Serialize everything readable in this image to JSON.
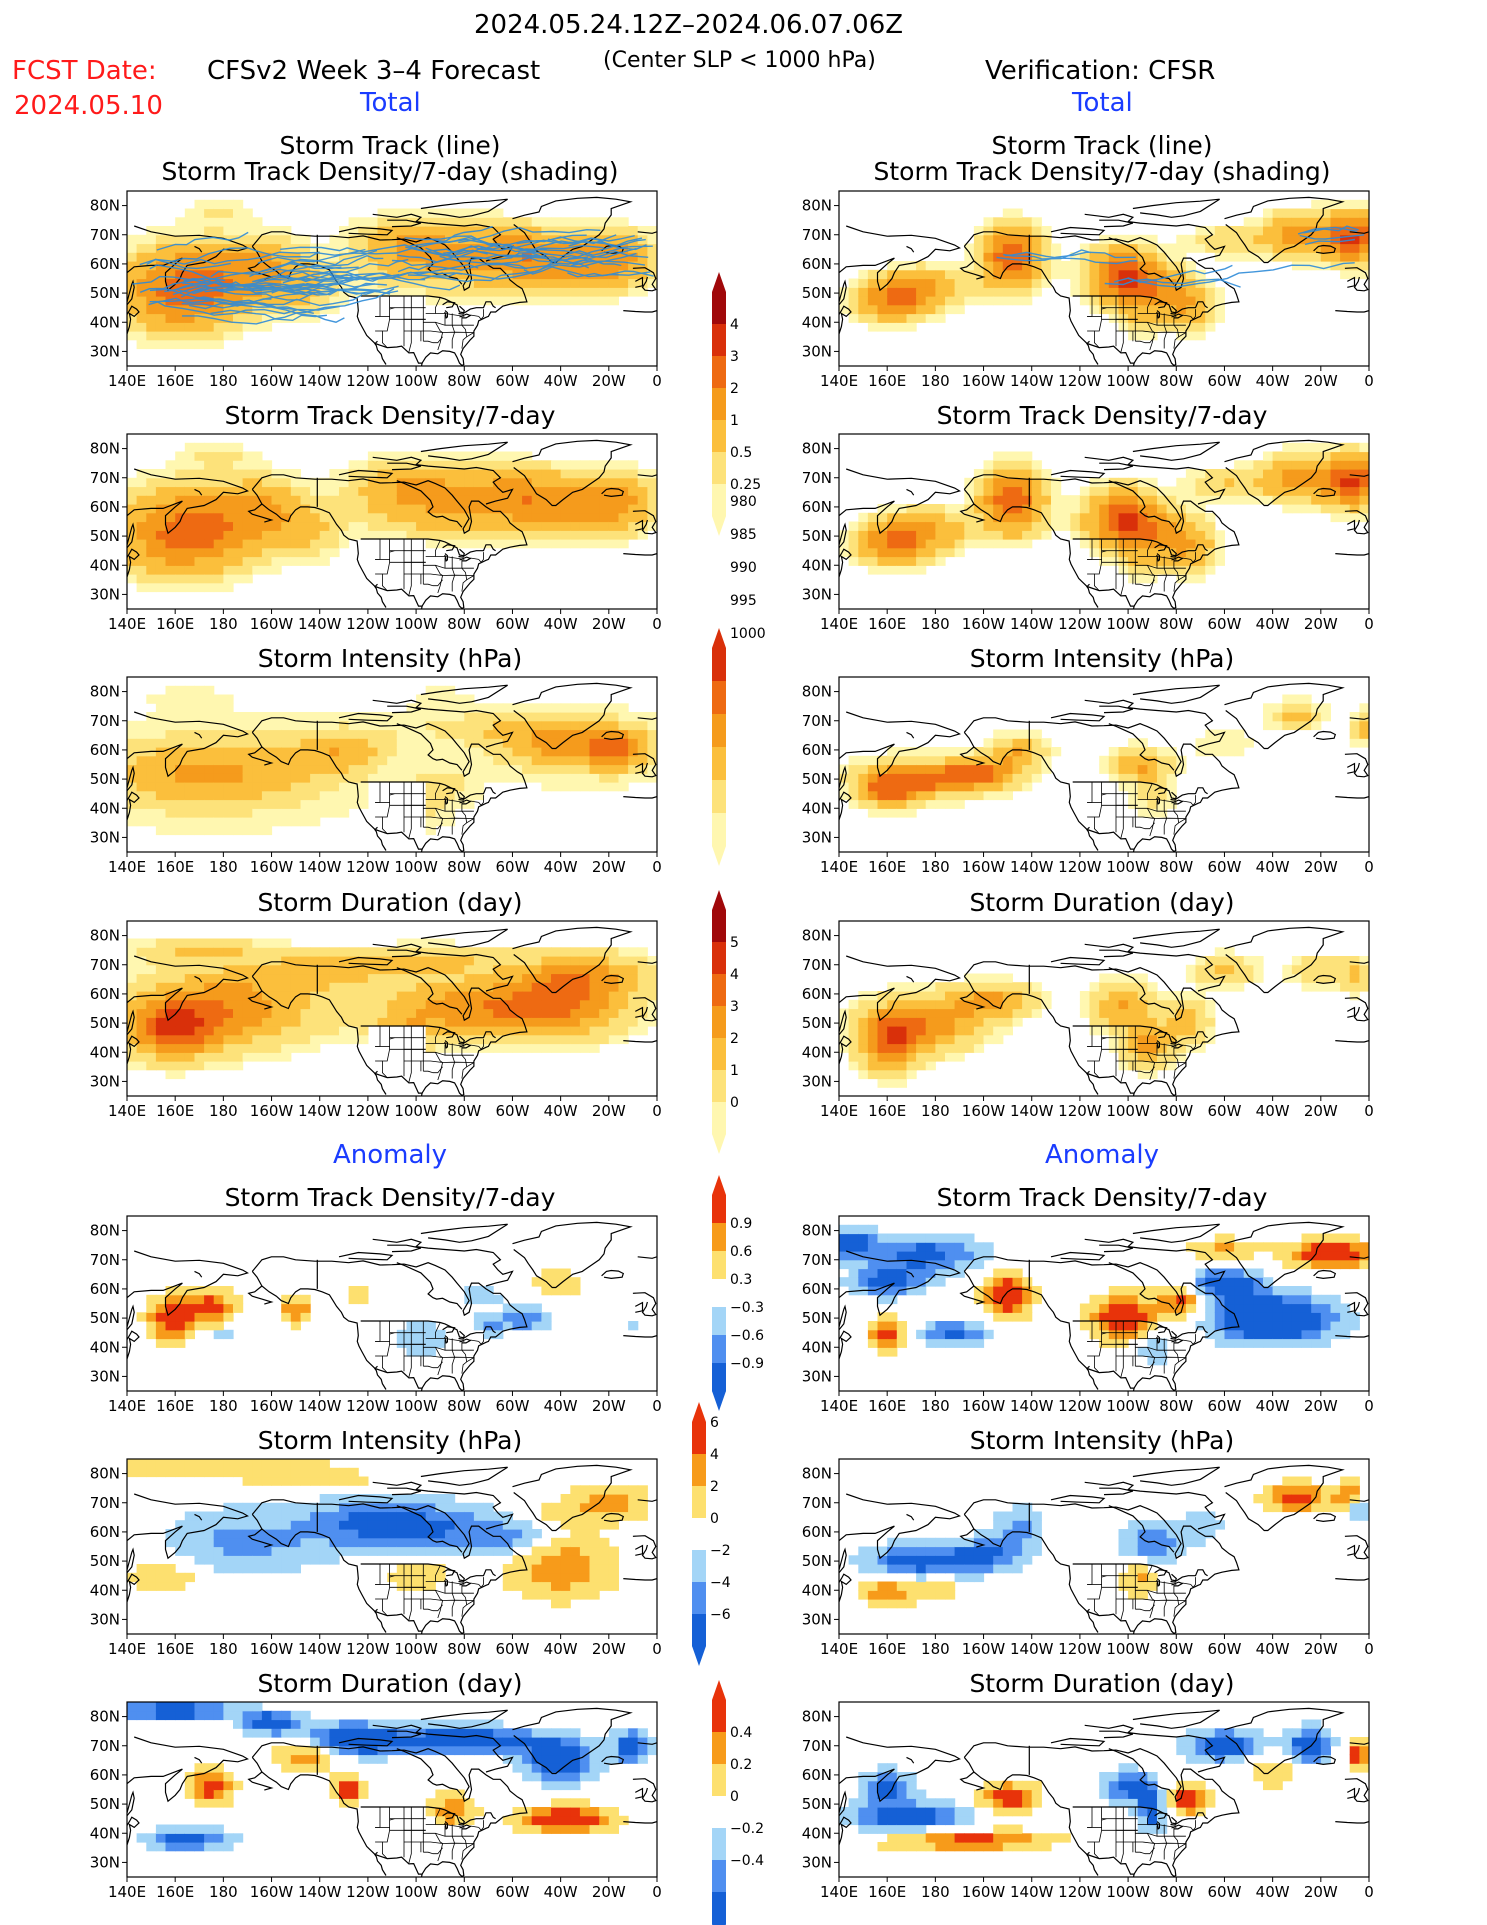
{
  "header": {
    "period": "2024.05.24.12Z–2024.06.07.06Z",
    "fcst_date_label": "FCST Date:",
    "fcst_date_value": "2024.05.10",
    "left_title": "CFSv2 Week 3–4 Forecast",
    "criterion": "(Center SLP < 1000 hPa)",
    "right_title": "Verification: CFSR",
    "left_total": "Total",
    "right_total": "Total",
    "left_anomaly": "Anomaly",
    "right_anomaly": "Anomaly"
  },
  "axes": {
    "lon_ticks": [
      "140E",
      "160E",
      "180",
      "160W",
      "140W",
      "120W",
      "100W",
      "80W",
      "60W",
      "40W",
      "20W",
      "0"
    ],
    "lat_ticks": [
      "80N",
      "70N",
      "60N",
      "50N",
      "40N",
      "30N"
    ]
  },
  "panel_titles": {
    "track_line": "Storm Track (line)",
    "track_density_shading": "Storm Track Density/7-day (shading)",
    "track_density": "Storm Track Density/7-day",
    "intensity": "Storm Intensity (hPa)",
    "duration": "Storm Duration (day)"
  },
  "colorbars": {
    "density_total": [
      "4",
      "3",
      "2",
      "1",
      "0.5",
      "0.25"
    ],
    "intensity_total": [
      "1000",
      "995",
      "990",
      "985",
      "980"
    ],
    "duration_total": [
      "5",
      "4",
      "3",
      "2",
      "1",
      "0"
    ],
    "density_anom": [
      "0.9",
      "0.6",
      "0.3",
      "−0.3",
      "−0.6",
      "−0.9"
    ],
    "intensity_anom": [
      "6",
      "4",
      "2",
      "0",
      "−2",
      "−4",
      "−6"
    ],
    "duration_anom": [
      "0.4",
      "0.2",
      "0",
      "−0.2",
      "−0.4"
    ]
  },
  "colors": {
    "seq": [
      "#fff7b0",
      "#fde27a",
      "#fbbf3c",
      "#f59b1c",
      "#ee6a12",
      "#d9300a",
      "#a0080a"
    ],
    "div": [
      "#1560d6",
      "#4f8ff0",
      "#a3d5f7",
      "#ffffff",
      "#fde06f",
      "#f79b1a",
      "#e8330a"
    ],
    "track": "#2e8bd8",
    "coast": "#000000"
  }
}
